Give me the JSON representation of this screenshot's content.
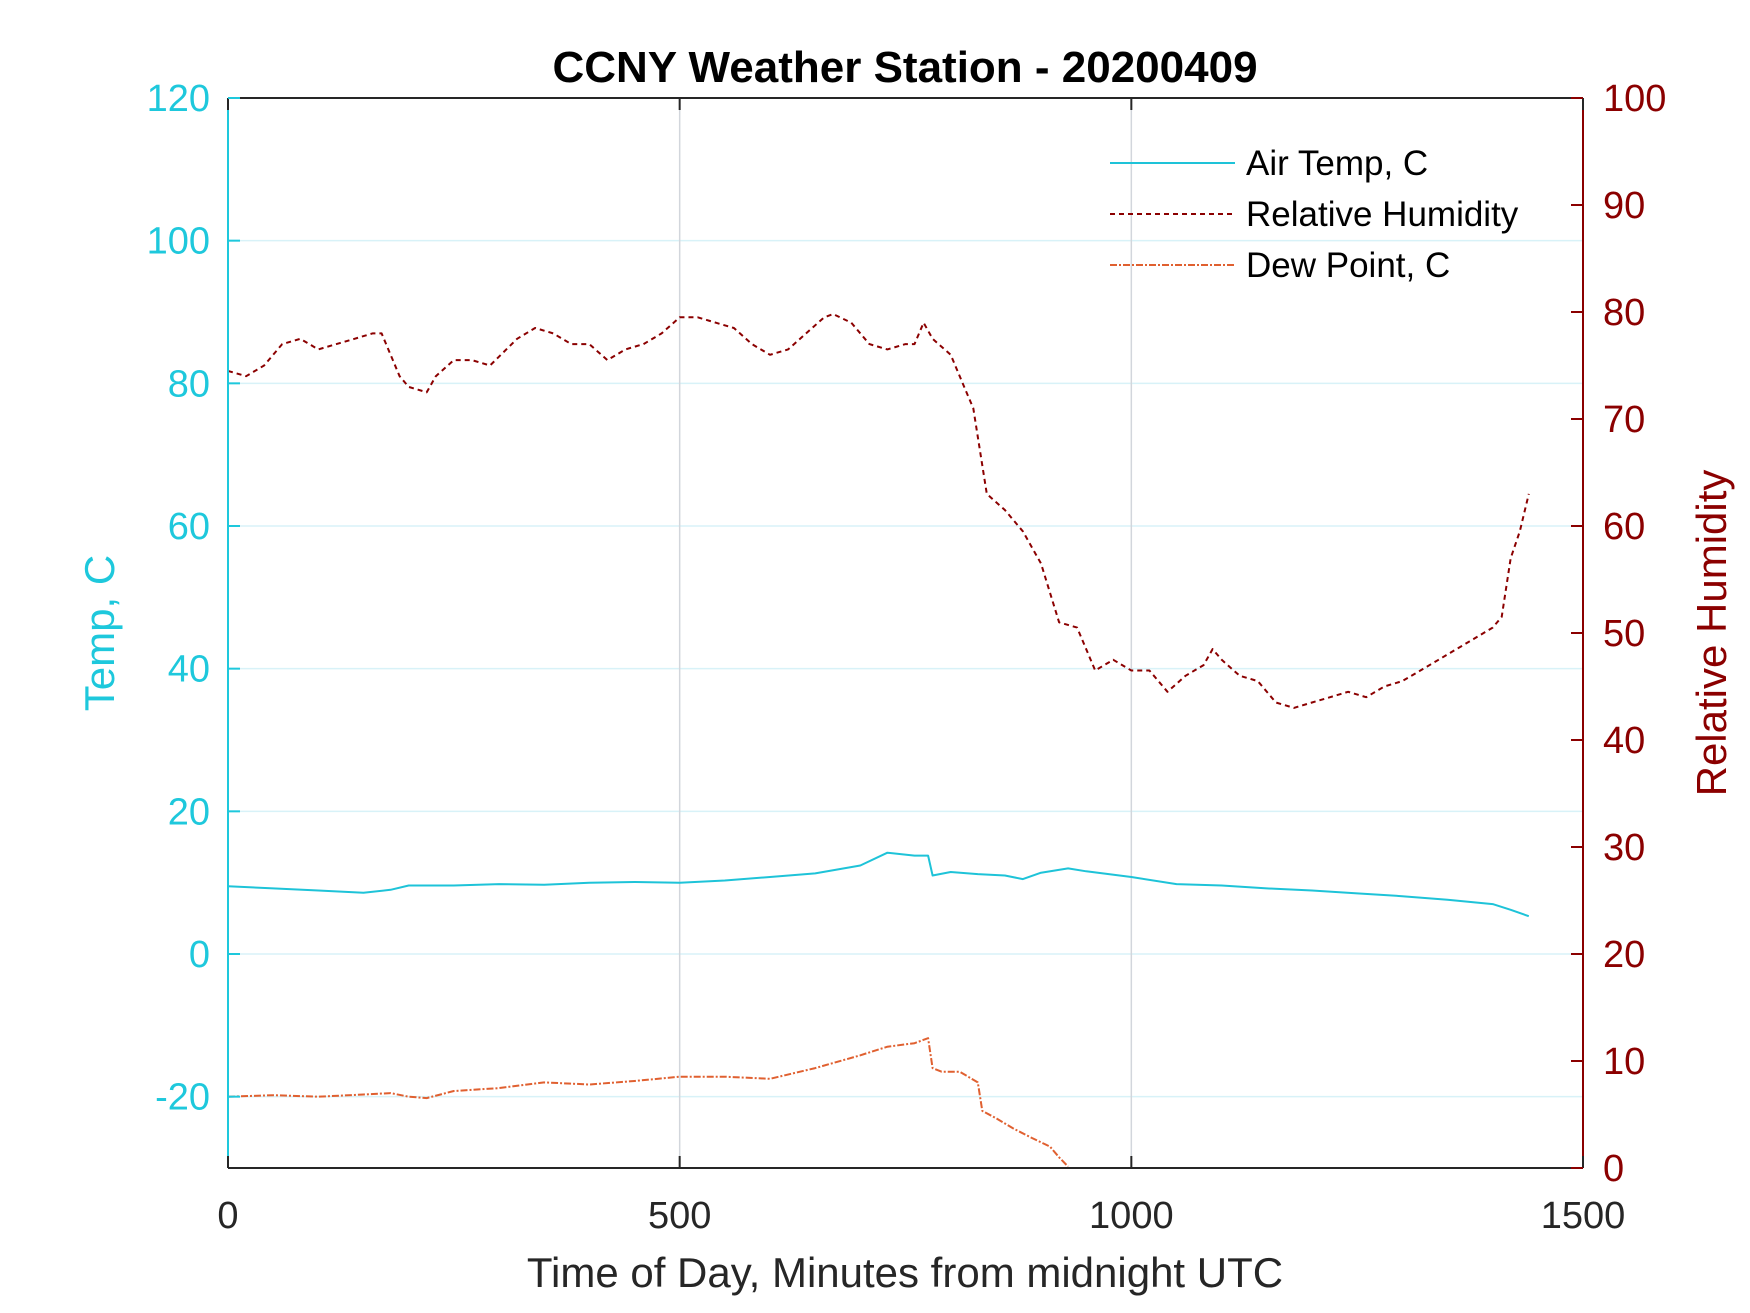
{
  "chart_data": {
    "type": "line",
    "title": "CCNY Weather Station - 20200409",
    "xlabel": "Time of Day, Minutes from midnight UTC",
    "ylabel_left": "Temp, C",
    "ylabel_right": "Relative Humidity",
    "xlim": [
      0,
      1500
    ],
    "ylim_left": [
      -30,
      120
    ],
    "ylim_right": [
      0,
      100
    ],
    "x_ticks": [
      "0",
      "500",
      "1000",
      "1500"
    ],
    "y_ticks_left": [
      "120",
      "100",
      "80",
      "60",
      "40",
      "20",
      "0",
      "-20"
    ],
    "y_ticks_right": [
      "100",
      "90",
      "80",
      "70",
      "60",
      "50",
      "40",
      "30",
      "20",
      "10",
      "0"
    ],
    "grid": true,
    "legend_position": "top-right",
    "colors": {
      "left_axis": "#1ec8dc",
      "right_axis": "#8b0000",
      "air_temp": "#1ec3d8",
      "humidity": "#8b0000",
      "dew_point": "#e06030",
      "grid_x": "#d2d6dc",
      "grid_y": "#d8f2f8"
    },
    "series": [
      {
        "name": "Air Temp, C",
        "axis": "left",
        "style": "solid",
        "x": [
          0,
          50,
          100,
          150,
          180,
          200,
          250,
          300,
          350,
          400,
          450,
          500,
          550,
          600,
          650,
          700,
          730,
          760,
          775,
          780,
          800,
          830,
          860,
          880,
          900,
          930,
          950,
          1000,
          1050,
          1100,
          1150,
          1200,
          1250,
          1300,
          1350,
          1400,
          1420,
          1440
        ],
        "values": [
          9.5,
          9.2,
          8.9,
          8.6,
          9.0,
          9.6,
          9.6,
          9.8,
          9.7,
          10.0,
          10.1,
          10.0,
          10.3,
          10.8,
          11.3,
          12.4,
          14.2,
          13.8,
          13.8,
          11.0,
          11.5,
          11.2,
          11.0,
          10.5,
          11.4,
          12.0,
          11.6,
          10.8,
          9.8,
          9.6,
          9.2,
          8.9,
          8.5,
          8.1,
          7.6,
          7.0,
          6.2,
          5.3
        ]
      },
      {
        "name": "Relative Humidity",
        "axis": "right",
        "style": "dashed",
        "x": [
          0,
          20,
          40,
          60,
          80,
          100,
          120,
          140,
          160,
          170,
          180,
          190,
          200,
          220,
          230,
          250,
          270,
          290,
          320,
          340,
          360,
          380,
          400,
          420,
          440,
          460,
          480,
          500,
          520,
          540,
          560,
          580,
          600,
          620,
          640,
          660,
          670,
          690,
          710,
          730,
          750,
          760,
          770,
          780,
          800,
          815,
          825,
          840,
          860,
          880,
          900,
          920,
          940,
          960,
          970,
          980,
          1000,
          1020,
          1040,
          1060,
          1080,
          1090,
          1100,
          1120,
          1140,
          1160,
          1180,
          1200,
          1220,
          1240,
          1260,
          1280,
          1300,
          1320,
          1340,
          1360,
          1380,
          1400,
          1410,
          1420,
          1430,
          1440
        ],
        "values": [
          74.5,
          74.0,
          75.0,
          77.0,
          77.5,
          76.5,
          77.0,
          77.5,
          78.0,
          78.0,
          76.0,
          74.0,
          73.0,
          72.5,
          74.0,
          75.5,
          75.5,
          75.0,
          77.5,
          78.5,
          78.0,
          77.0,
          77.0,
          75.5,
          76.5,
          77.0,
          78.0,
          79.5,
          79.5,
          79.0,
          78.5,
          77.0,
          76.0,
          76.5,
          78.0,
          79.5,
          79.8,
          79.0,
          77.0,
          76.5,
          77.0,
          77.0,
          79.0,
          77.5,
          76.0,
          73.0,
          71.0,
          63.0,
          61.5,
          59.5,
          56.5,
          51.0,
          50.5,
          46.5,
          47.0,
          47.5,
          46.5,
          46.5,
          44.5,
          46.0,
          47.0,
          48.5,
          47.5,
          46.0,
          45.5,
          43.5,
          43.0,
          43.5,
          44.0,
          44.5,
          44.0,
          45.0,
          45.5,
          46.5,
          47.5,
          48.5,
          49.5,
          50.5,
          51.5,
          57.0,
          59.5,
          63.0
        ]
      },
      {
        "name": "Dew Point, C",
        "axis": "left",
        "style": "dash-dot",
        "x": [
          0,
          50,
          100,
          150,
          180,
          200,
          220,
          250,
          300,
          350,
          400,
          450,
          500,
          550,
          600,
          650,
          700,
          730,
          760,
          775,
          780,
          790,
          810,
          830,
          835,
          850,
          870,
          890,
          910,
          920,
          930
        ],
        "values": [
          -20.0,
          -19.8,
          -20.0,
          -19.7,
          -19.5,
          -20.0,
          -20.2,
          -19.2,
          -18.8,
          -18.0,
          -18.3,
          -17.8,
          -17.2,
          -17.2,
          -17.5,
          -16.0,
          -14.2,
          -13.0,
          -12.5,
          -11.8,
          -16.0,
          -16.5,
          -16.5,
          -18.0,
          -22.0,
          -23.0,
          -24.5,
          -25.8,
          -27.0,
          -28.5,
          -29.8
        ]
      }
    ]
  }
}
